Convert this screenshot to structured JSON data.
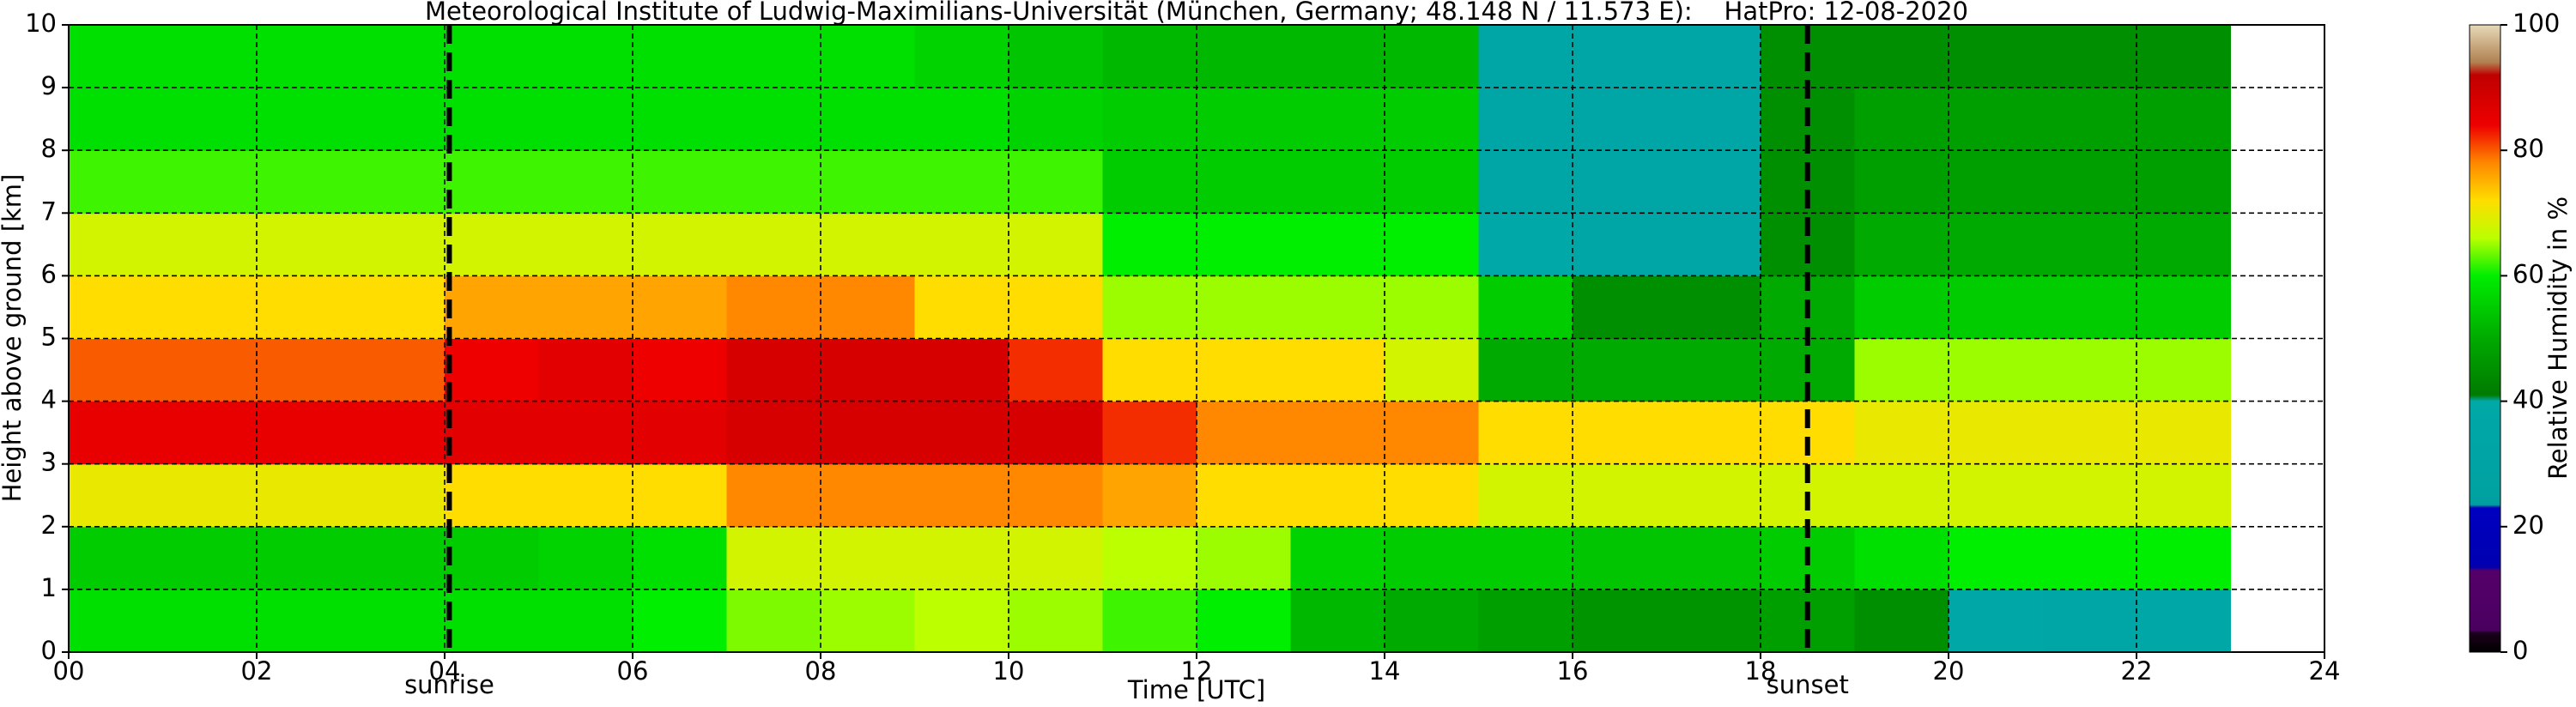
{
  "chart_data": {
    "type": "heatmap",
    "title": "Meteorological Institute of Ludwig-Maximilians-Universität (München, Germany; 48.148 N / 11.573 E):    HatPro: 12-08-2020",
    "xlabel": "Time [UTC]",
    "ylabel": "Height above ground [km]",
    "xlim": [
      0,
      24
    ],
    "ylim": [
      0,
      10
    ],
    "xticks": [
      {
        "value": 0,
        "label": "00"
      },
      {
        "value": 2,
        "label": "02"
      },
      {
        "value": 4,
        "label": "04"
      },
      {
        "value": 6,
        "label": "06"
      },
      {
        "value": 8,
        "label": "08"
      },
      {
        "value": 10,
        "label": "10"
      },
      12,
      14,
      16,
      18,
      20,
      22,
      24
    ],
    "yticks": [
      0,
      1,
      2,
      3,
      4,
      5,
      6,
      7,
      8,
      9,
      10
    ],
    "grid": true,
    "xbins": [
      0,
      1,
      2,
      3,
      4,
      5,
      6,
      7,
      8,
      9,
      10,
      11,
      12,
      13,
      14,
      15,
      16,
      17,
      18,
      19,
      20,
      21,
      22,
      23
    ],
    "ybins": [
      0,
      1,
      2,
      3,
      4,
      5,
      6,
      7,
      8,
      9,
      10
    ],
    "z": [
      [
        58,
        58,
        58,
        58,
        58,
        58,
        60,
        64,
        65,
        66,
        65,
        62,
        60,
        52,
        50,
        48,
        46,
        46,
        48,
        45,
        38,
        36,
        38
      ],
      [
        55,
        55,
        55,
        55,
        55,
        56,
        58,
        68,
        68,
        68,
        68,
        66,
        65,
        56,
        55,
        55,
        54,
        54,
        55,
        58,
        60,
        60,
        60
      ],
      [
        70,
        70,
        70,
        70,
        72,
        72,
        72,
        78,
        78,
        78,
        78,
        76,
        72,
        72,
        72,
        68,
        68,
        68,
        68,
        68,
        68,
        68,
        68
      ],
      [
        85,
        85,
        85,
        85,
        86,
        86,
        86,
        88,
        88,
        88,
        88,
        82,
        78,
        78,
        78,
        72,
        72,
        72,
        72,
        70,
        70,
        70,
        70
      ],
      [
        80,
        80,
        80,
        80,
        84,
        86,
        84,
        88,
        88,
        88,
        82,
        72,
        72,
        72,
        68,
        50,
        50,
        50,
        50,
        65,
        65,
        65,
        65
      ],
      [
        72,
        72,
        72,
        72,
        76,
        76,
        76,
        78,
        78,
        72,
        72,
        65,
        65,
        65,
        65,
        55,
        45,
        45,
        50,
        55,
        55,
        55,
        55
      ],
      [
        68,
        68,
        68,
        68,
        68,
        68,
        68,
        68,
        68,
        68,
        68,
        60,
        60,
        60,
        60,
        40,
        36,
        36,
        45,
        50,
        50,
        50,
        50
      ],
      [
        62,
        62,
        62,
        62,
        62,
        62,
        62,
        62,
        62,
        62,
        62,
        55,
        55,
        55,
        55,
        36,
        36,
        36,
        45,
        48,
        48,
        48,
        48
      ],
      [
        58,
        58,
        58,
        58,
        58,
        58,
        58,
        58,
        58,
        58,
        56,
        55,
        55,
        55,
        55,
        36,
        36,
        36,
        45,
        48,
        48,
        48,
        48
      ],
      [
        58,
        58,
        58,
        58,
        58,
        58,
        58,
        58,
        58,
        56,
        54,
        52,
        52,
        52,
        52,
        36,
        36,
        36,
        45,
        45,
        45,
        45,
        45
      ]
    ],
    "colorscale": [
      [
        0,
        "#000000"
      ],
      [
        3,
        "#1a001a"
      ],
      [
        3.5,
        "#4a0060"
      ],
      [
        13,
        "#55006a"
      ],
      [
        13.5,
        "#0000b0"
      ],
      [
        23,
        "#0000c0"
      ],
      [
        23.5,
        "#00a0a0"
      ],
      [
        40,
        "#00a8a8"
      ],
      [
        41,
        "#007a00"
      ],
      [
        50,
        "#00aa00"
      ],
      [
        60,
        "#00ee00"
      ],
      [
        66,
        "#bbff00"
      ],
      [
        72,
        "#ffdd00"
      ],
      [
        78,
        "#ff8800"
      ],
      [
        84,
        "#ee0000"
      ],
      [
        92,
        "#c00000"
      ],
      [
        94,
        "#b08050"
      ],
      [
        100,
        "#e6d9b8"
      ]
    ],
    "colorbar": {
      "label": "Relative Humidity in %",
      "lim": [
        0,
        100
      ],
      "ticks": [
        0,
        20,
        40,
        60,
        80,
        100
      ]
    },
    "annotations": [
      {
        "text": "sunrise",
        "x": 4.05
      },
      {
        "text": "sunset",
        "x": 18.5
      }
    ]
  }
}
